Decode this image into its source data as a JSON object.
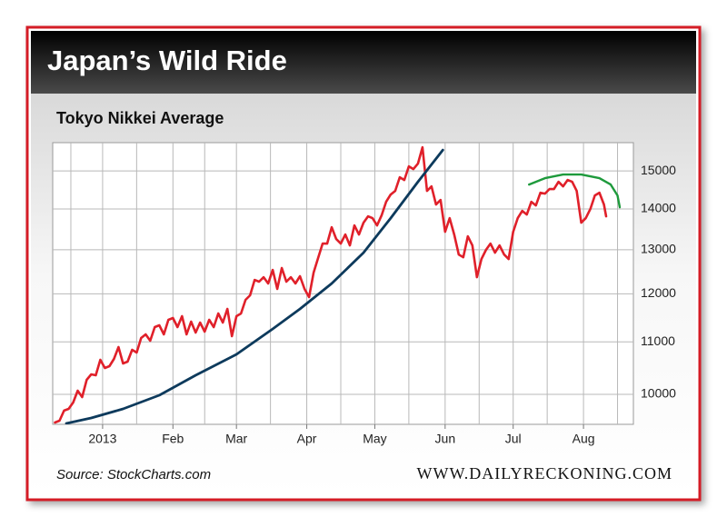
{
  "chart_data": {
    "type": "line",
    "title": "Japan’s Wild Ride",
    "subtitle": "Tokyo Nikkei Average",
    "source": "Source: StockCharts.com",
    "website": "WWW.DAILYRECKONING.COM",
    "ylog": true,
    "grid": true,
    "ylim": [
      9470,
      15790
    ],
    "yticks": [
      10000,
      11000,
      12000,
      13000,
      14000,
      15000
    ],
    "xlim": [
      -22,
      234
    ],
    "xticks": [
      {
        "value": 0,
        "label": "2013"
      },
      {
        "value": 31,
        "label": "Feb"
      },
      {
        "value": 59,
        "label": "Mar"
      },
      {
        "value": 90,
        "label": "Apr"
      },
      {
        "value": 120,
        "label": "May"
      },
      {
        "value": 151,
        "label": "Jun"
      },
      {
        "value": 181,
        "label": "Jul"
      },
      {
        "value": 212,
        "label": "Aug"
      }
    ],
    "xminorticks": [
      -14,
      15,
      45,
      74,
      105,
      135,
      166,
      196,
      227
    ],
    "series": [
      {
        "color": "#e0202a",
        "width": 2.6,
        "x": [
          -21,
          -19,
          -17,
          -15,
          -13,
          -11,
          -9,
          -7,
          -5,
          -3,
          -1,
          1,
          3,
          5,
          7,
          9,
          11,
          13,
          15,
          17,
          19,
          21,
          23,
          25,
          27,
          29,
          31,
          33,
          35,
          37,
          39,
          41,
          43,
          45,
          47,
          49,
          51,
          53,
          55,
          57,
          59,
          61,
          63,
          65,
          67,
          69,
          71,
          73,
          75,
          77,
          79,
          81,
          83,
          85,
          87,
          89,
          91,
          93,
          95,
          97,
          99,
          101,
          103,
          105,
          107,
          109,
          111,
          113,
          115,
          117,
          119,
          121,
          123,
          125,
          127,
          129,
          131,
          133,
          135,
          137,
          139,
          141,
          143,
          145,
          147,
          149,
          151,
          153,
          155,
          157,
          159,
          161,
          163,
          165,
          167,
          169,
          171,
          173,
          175,
          177,
          179,
          181,
          183,
          185,
          187,
          189,
          191,
          193,
          195,
          197,
          199,
          201,
          203,
          205,
          207,
          209,
          211,
          213,
          215,
          217,
          219,
          221,
          222
        ],
        "values": [
          9502,
          9533,
          9708,
          9740,
          9853,
          10066,
          9951,
          10267,
          10369,
          10352,
          10646,
          10490,
          10524,
          10664,
          10895,
          10576,
          10611,
          10841,
          10788,
          11076,
          11149,
          11021,
          11297,
          11335,
          11149,
          11448,
          11485,
          11297,
          11523,
          11149,
          11410,
          11186,
          11391,
          11205,
          11448,
          11297,
          11580,
          11391,
          11676,
          11113,
          11523,
          11580,
          11870,
          11969,
          12308,
          12268,
          12369,
          12228,
          12533,
          12107,
          12575,
          12268,
          12369,
          12228,
          12390,
          12107,
          11929,
          12472,
          12805,
          13147,
          13147,
          13543,
          13256,
          13147,
          13366,
          13104,
          13588,
          13366,
          13655,
          13814,
          13768,
          13588,
          13837,
          14183,
          14370,
          14466,
          14828,
          14755,
          15124,
          15050,
          15200,
          15657,
          14466,
          14586,
          14113,
          14229,
          13432,
          13768,
          13366,
          12889,
          12826,
          13321,
          13104,
          12369,
          12784,
          12997,
          13147,
          12932,
          13104,
          12889,
          12784,
          13432,
          13768,
          13951,
          13860,
          14183,
          14089,
          14418,
          14395,
          14514,
          14514,
          14706,
          14586,
          14755,
          14706,
          14466,
          13655,
          13768,
          13997,
          14348,
          14418,
          14113,
          13814
        ]
      },
      {
        "color": "#0d3a5c",
        "width": 2.8,
        "x": [
          -16,
          -5,
          9,
          25,
          41,
          59,
          75,
          87,
          101,
          115,
          127,
          139,
          150
        ],
        "values": [
          9486,
          9580,
          9740,
          9984,
          10352,
          10752,
          11260,
          11676,
          12228,
          12932,
          13768,
          14706,
          15580
        ]
      },
      {
        "color": "#1e9a3c",
        "width": 2.4,
        "x": [
          188,
          195,
          203,
          211,
          219,
          224,
          227,
          228
        ],
        "values": [
          14634,
          14804,
          14902,
          14902,
          14804,
          14634,
          14348,
          14042
        ]
      }
    ]
  }
}
